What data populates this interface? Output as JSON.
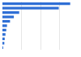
{
  "chart_data": {
    "type": "bar",
    "orientation": "horizontal",
    "categories": [
      null,
      null,
      null,
      null,
      null,
      null,
      null,
      null,
      null,
      null,
      null
    ],
    "values": [
      89,
      74,
      22,
      15,
      10,
      6,
      5,
      4,
      3,
      2.5,
      1
    ],
    "color": "#2f6fd5",
    "xlim": [
      0,
      100
    ],
    "xticks": [
      0,
      25,
      50,
      75,
      100
    ],
    "grid": true,
    "tick_labels": false
  }
}
